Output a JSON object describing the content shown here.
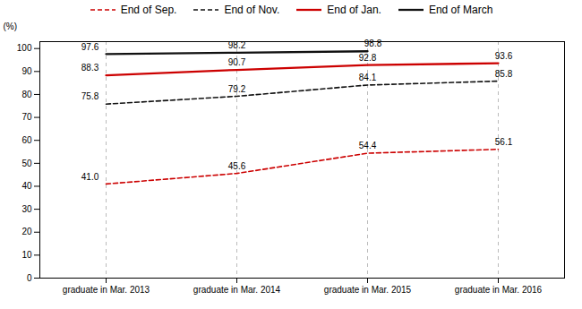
{
  "chart_data": {
    "type": "line",
    "categories": [
      "graduate in Mar. 2013",
      "graduate in Mar. 2014",
      "graduate in Mar. 2015",
      "graduate in Mar. 2016"
    ],
    "series": [
      {
        "name": "End of Sep.",
        "color": "#cc0000",
        "line_style": "dashed",
        "values": [
          41.0,
          45.6,
          54.4,
          56.1
        ],
        "value_labels": [
          "41.0",
          "45.6",
          "54.4",
          "56.1"
        ]
      },
      {
        "name": "End of Nov.",
        "color": "#111111",
        "line_style": "dashed",
        "values": [
          75.8,
          79.2,
          84.1,
          85.8
        ],
        "value_labels": [
          "75.8",
          "79.2",
          "84.1",
          "85.8"
        ]
      },
      {
        "name": "End of Jan.",
        "color": "#cc0000",
        "line_style": "solid",
        "values": [
          88.3,
          90.7,
          92.8,
          93.6
        ],
        "value_labels": [
          "88.3",
          "90.7",
          "92.8",
          "93.6"
        ]
      },
      {
        "name": "End of March",
        "color": "#111111",
        "line_style": "solid",
        "values": [
          97.6,
          98.2,
          98.8,
          null
        ],
        "value_labels": [
          "97.6",
          "98.2",
          "98.8",
          null
        ]
      }
    ],
    "ylabel": "(%)",
    "ylim": [
      0,
      103
    ],
    "yticks": [
      0,
      10,
      20,
      30,
      40,
      50,
      60,
      70,
      80,
      90,
      100
    ],
    "data_labels": true,
    "grid": "x",
    "legend": "top"
  }
}
